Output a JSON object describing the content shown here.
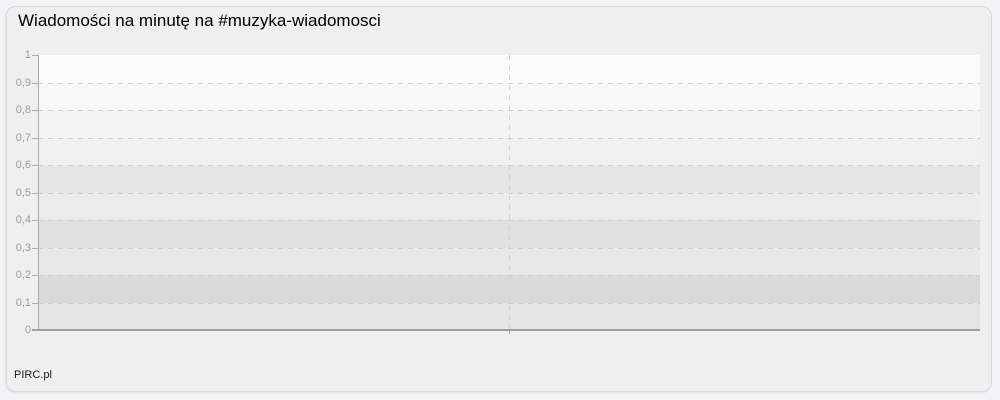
{
  "header": {
    "title": "Wiadomości na minutę na #muzyka-wiadomosci"
  },
  "footer": {
    "brand": "PIRC.pl"
  },
  "colors": {
    "card_background": "#efefef",
    "page_background": "#f2f3f7",
    "axis": "#9d9e9f",
    "tick_label": "#9d9d9d"
  },
  "chart_data": {
    "type": "line",
    "title": "Wiadomości na minutę na #muzyka-wiadomosci",
    "xlabel": "",
    "ylabel": "",
    "ylim": [
      0,
      1
    ],
    "y_tick_step": 0.1,
    "y_tick_labels": [
      "1",
      "0,9",
      "0,8",
      "0,7",
      "0,6",
      "0,5",
      "0,4",
      "0,3",
      "0,2",
      "0,1",
      "0"
    ],
    "x_tick_labels": [],
    "categories": [],
    "series": [],
    "empty": true,
    "decimal_separator": ",",
    "grid": {
      "horizontal": "dashed lines at each 0,1 step with alternating shaded bands",
      "vertical": "single dashed line at plot center"
    },
    "legend": "none"
  }
}
